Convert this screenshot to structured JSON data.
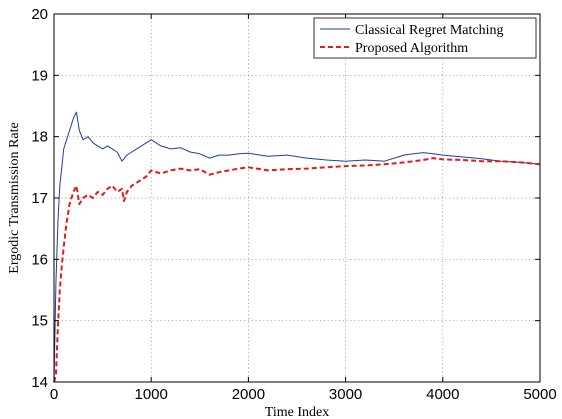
{
  "chart_data": {
    "type": "line",
    "title": "",
    "xlabel": "Time Index",
    "ylabel": "Ergodic Transmission Rate",
    "xlim": [
      0,
      5000
    ],
    "ylim": [
      14,
      20
    ],
    "xticks": [
      0,
      1000,
      2000,
      3000,
      4000,
      5000
    ],
    "yticks": [
      14,
      15,
      16,
      17,
      18,
      19,
      20
    ],
    "xtick_labels": [
      "0",
      "1000",
      "2000",
      "3000",
      "4000",
      "5000"
    ],
    "ytick_labels": [
      "14",
      "15",
      "16",
      "17",
      "18",
      "19",
      "20"
    ],
    "grid": true,
    "legend_position": "top-right",
    "series": [
      {
        "name": "Classical Regret Matching",
        "color": "#1f3f99",
        "line_style": "solid",
        "x": [
          0,
          20,
          40,
          60,
          80,
          100,
          130,
          160,
          200,
          230,
          260,
          300,
          350,
          400,
          450,
          500,
          550,
          600,
          650,
          700,
          750,
          800,
          850,
          900,
          950,
          1000,
          1100,
          1200,
          1300,
          1400,
          1500,
          1600,
          1700,
          1800,
          1900,
          2000,
          2200,
          2400,
          2600,
          2800,
          3000,
          3200,
          3400,
          3600,
          3700,
          3800,
          3900,
          4000,
          4200,
          4400,
          4600,
          4800,
          5000
        ],
        "y": [
          14.0,
          15.6,
          16.6,
          17.2,
          17.5,
          17.8,
          17.95,
          18.1,
          18.3,
          18.4,
          18.1,
          17.95,
          18.0,
          17.9,
          17.85,
          17.8,
          17.85,
          17.8,
          17.75,
          17.6,
          17.7,
          17.75,
          17.8,
          17.85,
          17.9,
          17.95,
          17.85,
          17.8,
          17.82,
          17.75,
          17.72,
          17.65,
          17.7,
          17.7,
          17.72,
          17.73,
          17.68,
          17.7,
          17.65,
          17.62,
          17.6,
          17.62,
          17.6,
          17.7,
          17.72,
          17.74,
          17.72,
          17.7,
          17.67,
          17.64,
          17.6,
          17.58,
          17.55
        ]
      },
      {
        "name": "Proposed Algorithm",
        "color": "#e51a1a",
        "line_style": "dashed",
        "x": [
          0,
          20,
          40,
          60,
          80,
          100,
          130,
          160,
          200,
          230,
          260,
          300,
          350,
          400,
          450,
          500,
          550,
          600,
          650,
          700,
          720,
          750,
          800,
          850,
          900,
          950,
          1000,
          1100,
          1200,
          1300,
          1400,
          1500,
          1600,
          1700,
          1800,
          1900,
          2000,
          2200,
          2400,
          2600,
          2800,
          3000,
          3200,
          3400,
          3600,
          3700,
          3800,
          3900,
          4000,
          4200,
          4400,
          4600,
          4800,
          5000
        ],
        "y": [
          14.0,
          14.1,
          14.9,
          15.5,
          15.9,
          16.2,
          16.6,
          16.9,
          17.1,
          17.2,
          16.9,
          17.0,
          17.05,
          17.0,
          17.1,
          17.05,
          17.15,
          17.2,
          17.1,
          17.15,
          16.95,
          17.1,
          17.2,
          17.25,
          17.3,
          17.35,
          17.45,
          17.4,
          17.45,
          17.48,
          17.45,
          17.47,
          17.38,
          17.42,
          17.45,
          17.48,
          17.5,
          17.45,
          17.47,
          17.48,
          17.5,
          17.52,
          17.53,
          17.55,
          17.58,
          17.6,
          17.62,
          17.65,
          17.63,
          17.62,
          17.6,
          17.6,
          17.58,
          17.55
        ]
      }
    ]
  }
}
